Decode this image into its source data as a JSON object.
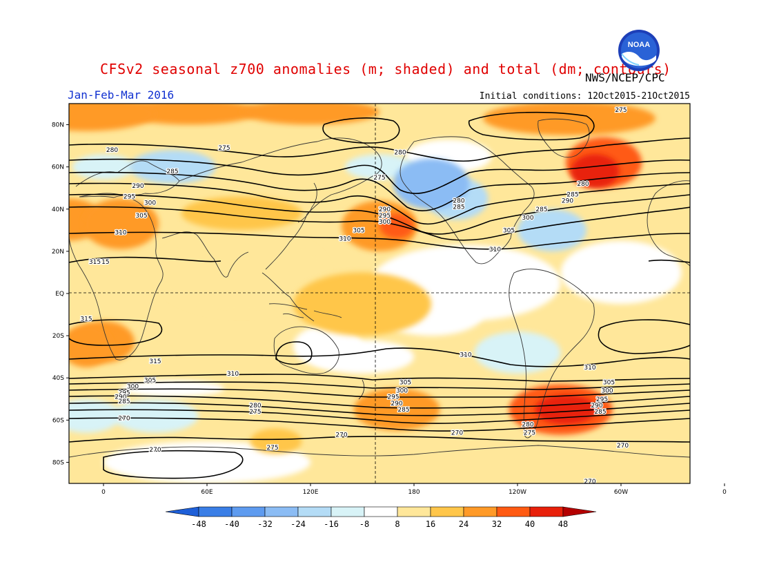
{
  "title": "CFSv2 seasonal z700 anomalies (m; shaded) and total (dm; contours)",
  "agency": "NWS/NCEP/CPC",
  "season": "Jan-Feb-Mar 2016",
  "initial_conditions": "Initial conditions: 12Oct2015-21Oct2015",
  "logo_text": "NOAA",
  "lat_labels": [
    "80N",
    "60N",
    "40N",
    "20N",
    "EQ",
    "20S",
    "40S",
    "60S",
    "80S"
  ],
  "lon_labels": [
    "0",
    "60E",
    "120E",
    "180",
    "120W",
    "60W",
    "0"
  ],
  "colorbar": {
    "labels": [
      "-48",
      "-40",
      "-32",
      "-24",
      "-16",
      "-8",
      "8",
      "16",
      "24",
      "32",
      "40",
      "48"
    ],
    "colors": [
      "#1e5fd8",
      "#3a7ee6",
      "#5e9bef",
      "#8bbcf4",
      "#b4dcf6",
      "#d8f3f7",
      "#ffffff",
      "#ffe79a",
      "#ffc64a",
      "#ff9a28",
      "#ff5a12",
      "#e8200a",
      "#b40000"
    ]
  },
  "anomaly_regions": [
    {
      "lon": -10,
      "lat": 85,
      "rx": 40,
      "ry": 8,
      "value": 28
    },
    {
      "lon": 50,
      "lat": 86,
      "rx": 40,
      "ry": 6,
      "value": 24
    },
    {
      "lon": 120,
      "lat": 86,
      "rx": 40,
      "ry": 6,
      "value": 24
    },
    {
      "lon": -90,
      "lat": 83,
      "rx": 50,
      "ry": 8,
      "value": 28
    },
    {
      "lon": -70,
      "lat": 62,
      "rx": 22,
      "ry": 12,
      "value": 36
    },
    {
      "lon": -75,
      "lat": 58,
      "rx": 14,
      "ry": 8,
      "value": 44
    },
    {
      "lon": 40,
      "lat": 60,
      "rx": 25,
      "ry": 8,
      "value": -24
    },
    {
      "lon": 0,
      "lat": 60,
      "rx": 18,
      "ry": 6,
      "value": -16
    },
    {
      "lon": 160,
      "lat": 60,
      "rx": 20,
      "ry": 6,
      "value": -16
    },
    {
      "lon": -170,
      "lat": 52,
      "rx": 22,
      "ry": 12,
      "value": -32
    },
    {
      "lon": -155,
      "lat": 45,
      "rx": 18,
      "ry": 10,
      "value": -24
    },
    {
      "lon": -100,
      "lat": 30,
      "rx": 20,
      "ry": 10,
      "value": -20
    },
    {
      "lon": 10,
      "lat": 33,
      "rx": 22,
      "ry": 12,
      "value": 28
    },
    {
      "lon": 160,
      "lat": 32,
      "rx": 22,
      "ry": 12,
      "value": 24
    },
    {
      "lon": 170,
      "lat": 32,
      "rx": 10,
      "ry": 6,
      "value": 32
    },
    {
      "lon": 80,
      "lat": 38,
      "rx": 35,
      "ry": 8,
      "value": 20
    },
    {
      "lon": -20,
      "lat": 35,
      "rx": 20,
      "ry": 10,
      "value": 24
    },
    {
      "lon": 0,
      "lat": -23,
      "rx": 18,
      "ry": 10,
      "value": 24
    },
    {
      "lon": -10,
      "lat": -25,
      "rx": 15,
      "ry": 10,
      "value": 24
    },
    {
      "lon": -120,
      "lat": -28,
      "rx": 25,
      "ry": 10,
      "value": -16
    },
    {
      "lon": 30,
      "lat": -58,
      "rx": 25,
      "ry": 8,
      "value": -16
    },
    {
      "lon": -10,
      "lat": -58,
      "rx": 20,
      "ry": 8,
      "value": -12
    },
    {
      "lon": -95,
      "lat": -55,
      "rx": 30,
      "ry": 12,
      "value": 32
    },
    {
      "lon": -92,
      "lat": -55,
      "rx": 18,
      "ry": 7,
      "value": 44
    },
    {
      "lon": 170,
      "lat": -55,
      "rx": 25,
      "ry": 10,
      "value": 24
    },
    {
      "lon": 100,
      "lat": -70,
      "rx": 15,
      "ry": 6,
      "value": 16
    },
    {
      "lon": 150,
      "lat": -5,
      "rx": 40,
      "ry": 15,
      "value": 16
    },
    {
      "lon": 80,
      "lat": 10,
      "rx": 50,
      "ry": 20,
      "value": 14
    },
    {
      "lon": 130,
      "lat": -25,
      "rx": 20,
      "ry": 10,
      "value": 4
    }
  ],
  "contour_labels": [
    {
      "text": "275",
      "lon": -60,
      "lat": 87
    },
    {
      "text": "280",
      "lon": 5,
      "lat": 68
    },
    {
      "text": "275",
      "lon": 70,
      "lat": 69
    },
    {
      "text": "280",
      "lon": 172,
      "lat": 67
    },
    {
      "text": "285",
      "lon": 40,
      "lat": 58
    },
    {
      "text": "275",
      "lon": 160,
      "lat": 55
    },
    {
      "text": "290",
      "lon": 20,
      "lat": 51
    },
    {
      "text": "295",
      "lon": 15,
      "lat": 46
    },
    {
      "text": "300",
      "lon": 27,
      "lat": 43
    },
    {
      "text": "305",
      "lon": 22,
      "lat": 37
    },
    {
      "text": "310",
      "lon": 10,
      "lat": 29
    },
    {
      "text": "290",
      "lon": 163,
      "lat": 40
    },
    {
      "text": "295",
      "lon": 163,
      "lat": 37
    },
    {
      "text": "300",
      "lon": 163,
      "lat": 34
    },
    {
      "text": "305",
      "lon": 148,
      "lat": 30
    },
    {
      "text": "310",
      "lon": 140,
      "lat": 26
    },
    {
      "text": "280",
      "lon": -154,
      "lat": 44
    },
    {
      "text": "285",
      "lon": -154,
      "lat": 41
    },
    {
      "text": "280",
      "lon": -82,
      "lat": 52
    },
    {
      "text": "285",
      "lon": -88,
      "lat": 47
    },
    {
      "text": "290",
      "lon": -91,
      "lat": 44
    },
    {
      "text": "285",
      "lon": -106,
      "lat": 40
    },
    {
      "text": "300",
      "lon": -114,
      "lat": 36
    },
    {
      "text": "305",
      "lon": -125,
      "lat": 30
    },
    {
      "text": "310",
      "lon": -133,
      "lat": 21
    },
    {
      "text": "315",
      "lon": 0,
      "lat": 15
    },
    {
      "text": "315",
      "lon": -5,
      "lat": 15
    },
    {
      "text": "315",
      "lon": -10,
      "lat": -12
    },
    {
      "text": "315",
      "lon": 30,
      "lat": -32
    },
    {
      "text": "310",
      "lon": 75,
      "lat": -38
    },
    {
      "text": "310",
      "lon": -150,
      "lat": -29
    },
    {
      "text": "310",
      "lon": -78,
      "lat": -35
    },
    {
      "text": "305",
      "lon": 27,
      "lat": -41
    },
    {
      "text": "300",
      "lon": 17,
      "lat": -44
    },
    {
      "text": "295",
      "lon": 12,
      "lat": -47
    },
    {
      "text": "290",
      "lon": 10,
      "lat": -49
    },
    {
      "text": "285",
      "lon": 12,
      "lat": -51
    },
    {
      "text": "280",
      "lon": 88,
      "lat": -53
    },
    {
      "text": "275",
      "lon": 88,
      "lat": -56
    },
    {
      "text": "270",
      "lon": 12,
      "lat": -59
    },
    {
      "text": "270",
      "lon": 138,
      "lat": -67
    },
    {
      "text": "270",
      "lon": 205,
      "lat": -66
    },
    {
      "text": "270",
      "lon": 30,
      "lat": -74
    },
    {
      "text": "275",
      "lon": 98,
      "lat": -73
    },
    {
      "text": "305",
      "lon": 175,
      "lat": -42
    },
    {
      "text": "300",
      "lon": 173,
      "lat": -46
    },
    {
      "text": "295",
      "lon": 168,
      "lat": -49
    },
    {
      "text": "290",
      "lon": 170,
      "lat": -52
    },
    {
      "text": "285",
      "lon": 174,
      "lat": -55
    },
    {
      "text": "280",
      "lon": -114,
      "lat": -62
    },
    {
      "text": "275",
      "lon": -113,
      "lat": -66
    },
    {
      "text": "305",
      "lon": -67,
      "lat": -42
    },
    {
      "text": "300",
      "lon": -68,
      "lat": -46
    },
    {
      "text": "295",
      "lon": -71,
      "lat": -50
    },
    {
      "text": "290",
      "lon": -74,
      "lat": -53
    },
    {
      "text": "285",
      "lon": -72,
      "lat": -56
    },
    {
      "text": "270",
      "lon": -59,
      "lat": -72
    },
    {
      "text": "270",
      "lon": -78,
      "lat": -89
    }
  ]
}
